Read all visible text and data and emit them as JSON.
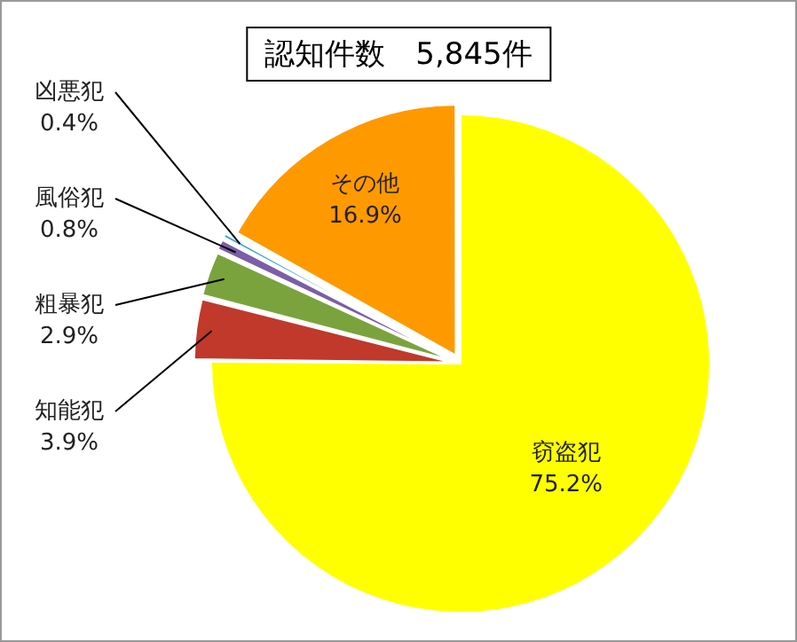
{
  "chart_data": {
    "type": "pie",
    "title": "認知件数　5,845件",
    "categories": [
      "窃盗犯",
      "知能犯",
      "粗暴犯",
      "風俗犯",
      "凶悪犯",
      "その他"
    ],
    "values": [
      75.2,
      3.9,
      2.9,
      0.8,
      0.4,
      16.9
    ],
    "colors": [
      "#ffff00",
      "#c0392b",
      "#7aa33e",
      "#7b5ea7",
      "#3aa6c8",
      "#ff9900"
    ],
    "value_labels": [
      "75.2%",
      "3.9%",
      "2.9%",
      "0.8%",
      "0.4%",
      "16.9%"
    ]
  }
}
